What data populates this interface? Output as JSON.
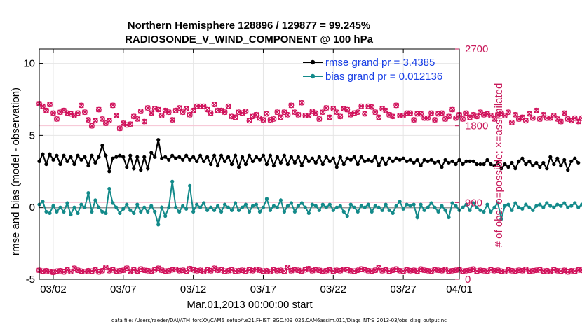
{
  "chart_data": {
    "type": "line",
    "title_line1": "Northern Hemisphere 128896 / 129877 = 99.245%",
    "title_line2": "RADIOSONDE_V_WIND_COMPONENT @ 100 hPa",
    "xlabel": "Mar.01,2013 00:00:00 start",
    "ylabel": "rmse and bias (model - observation)",
    "y2label": "# of obs: o=possible; ×=assimilated",
    "footnote": "data file: /Users/raeder/DAI/ATM_forcXX/CAM6_setup/f.e21.FHIST_BGC.f09_025.CAM6assim.011/Diags_NTrS_2013-03/obs_diag_output.nc",
    "xlim": [
      1,
      31
    ],
    "ylim": [
      -5,
      11
    ],
    "y2lim": [
      0,
      2700
    ],
    "x_ticks": [
      {
        "value": 2,
        "label": "03/02"
      },
      {
        "value": 7,
        "label": "03/07"
      },
      {
        "value": 12,
        "label": "03/12"
      },
      {
        "value": 17,
        "label": "03/17"
      },
      {
        "value": 22,
        "label": "03/22"
      },
      {
        "value": 27,
        "label": "03/27"
      },
      {
        "value": 31,
        "label": "04/01"
      }
    ],
    "y_ticks": [
      {
        "value": -5,
        "label": "-5"
      },
      {
        "value": 0,
        "label": "0"
      },
      {
        "value": 5,
        "label": "5"
      },
      {
        "value": 10,
        "label": "10"
      }
    ],
    "y2_ticks": [
      {
        "value": 0,
        "label": "0"
      },
      {
        "value": 900,
        "label": "900"
      },
      {
        "value": 1800,
        "label": "1800"
      },
      {
        "value": 2700,
        "label": "2700"
      }
    ],
    "legend": [
      {
        "label": "rmse grand pr = 3.4385",
        "color": "#000000"
      },
      {
        "label": "bias grand pr = 0.012136",
        "color": "#138a8a"
      }
    ],
    "series": [
      {
        "name": "rmse grand pr = 3.4385",
        "color": "#000000",
        "x_start": 1.0,
        "x_step": 0.25,
        "values": [
          3.2,
          3.7,
          3.0,
          3.7,
          3.3,
          3.6,
          3.0,
          3.6,
          3.2,
          3.5,
          3.0,
          3.6,
          3.3,
          3.5,
          2.9,
          3.6,
          3.1,
          3.5,
          4.3,
          3.6,
          2.5,
          3.4,
          3.5,
          3.6,
          3.5,
          2.8,
          3.6,
          2.7,
          3.5,
          2.6,
          3.5,
          2.7,
          3.8,
          3.5,
          4.7,
          3.4,
          3.5,
          3.3,
          3.6,
          3.4,
          3.5,
          3.3,
          3.6,
          3.3,
          3.5,
          3.2,
          3.6,
          3.2,
          3.5,
          3.0,
          3.6,
          2.9,
          3.6,
          3.2,
          3.5,
          3.0,
          3.6,
          2.8,
          3.5,
          3.0,
          3.6,
          3.2,
          3.5,
          3.3,
          3.6,
          3.0,
          3.6,
          2.9,
          3.5,
          3.1,
          3.6,
          3.0,
          3.5,
          3.1,
          3.5,
          2.9,
          3.5,
          3.2,
          3.4,
          3.1,
          3.5,
          3.0,
          3.5,
          3.2,
          3.4,
          2.8,
          3.5,
          3.0,
          3.4,
          3.3,
          3.5,
          3.0,
          3.5,
          3.2,
          3.3,
          3.2,
          3.5,
          2.9,
          3.4,
          3.0,
          3.4,
          3.2,
          3.4,
          3.3,
          3.4,
          3.2,
          3.3,
          3.1,
          3.3,
          2.9,
          3.3,
          3.2,
          3.3,
          3.1,
          3.2,
          2.8,
          3.3,
          3.1,
          3.2,
          3.0,
          3.3,
          3.0,
          3.2,
          3.2,
          3.2,
          3.0,
          3.0,
          3.0,
          3.3,
          3.0,
          2.9,
          3.1,
          2.7,
          3.0,
          2.8,
          3.1,
          2.7,
          3.2,
          3.4,
          3.0,
          3.2,
          2.9,
          3.1,
          2.8,
          3.1,
          2.7,
          3.5,
          3.0,
          3.4,
          2.9,
          3.3,
          2.6,
          3.2,
          3.4,
          3.1
        ]
      },
      {
        "name": "bias grand pr = 0.012136",
        "color": "#138a8a",
        "x_start": 1.0,
        "x_step": 0.25,
        "values": [
          0.2,
          0.4,
          -0.3,
          -0.4,
          0.1,
          -0.3,
          0.0,
          -0.3,
          0.3,
          -0.5,
          0.0,
          -0.4,
          0.2,
          0.0,
          1.0,
          -0.3,
          0.5,
          0.0,
          -0.3,
          -0.4,
          1.3,
          0.3,
          0.0,
          -0.4,
          -0.1,
          0.2,
          -0.2,
          -0.4,
          0.2,
          -0.3,
          0.0,
          -0.3,
          0.1,
          -0.3,
          -1.2,
          0.0,
          -0.6,
          0.0,
          1.8,
          0.0,
          -0.3,
          0.1,
          -0.1,
          1.5,
          -0.3,
          0.2,
          0.0,
          0.3,
          -0.2,
          0.0,
          -0.2,
          0.1,
          -0.3,
          0.2,
          0.0,
          -0.2,
          0.3,
          -0.2,
          0.0,
          0.2,
          -0.3,
          0.1,
          0.2,
          -0.3,
          0.0,
          0.6,
          -0.2,
          0.1,
          0.0,
          0.5,
          -0.3,
          0.1,
          0.3,
          -0.3,
          0.1,
          0.3,
          0.0,
          -0.4,
          0.2,
          0.1,
          -0.2,
          0.2,
          0.0,
          0.2,
          -0.2,
          0.0,
          0.1,
          -0.3,
          -0.6,
          0.2,
          0.0,
          -0.3,
          0.1,
          0.0,
          0.2,
          -0.3,
          0.1,
          0.0,
          -0.2,
          0.2,
          -0.2,
          -0.4,
          0.1,
          0.4,
          -0.1,
          0.2,
          0.1,
          0.2,
          -0.7,
          0.2,
          -0.2,
          0.0,
          0.3,
          0.0,
          -0.3,
          0.1,
          -0.2,
          -0.7,
          0.3,
          0.1,
          -0.2,
          0.0,
          0.2,
          -0.2,
          0.3,
          0.0,
          -0.2,
          -0.3,
          0.2,
          -0.3,
          0.0,
          0.3,
          -0.8,
          0.1,
          0.2,
          -0.2,
          0.3,
          0.0,
          -0.1,
          0.2,
          0.0,
          -0.2,
          0.1,
          0.2,
          0.0,
          0.3,
          0.1,
          0.0,
          0.2,
          0.1,
          0.3,
          0.0,
          0.1,
          0.3,
          0.0,
          0.2,
          0.6
        ]
      }
    ],
    "obs_counts": {
      "axis": "right",
      "color": "#d0105a",
      "x_start": 1.0,
      "x_step": 0.25,
      "possible_high": [
        2060,
        2030,
        1980,
        2050,
        1950,
        1880,
        1960,
        1980,
        1950,
        1940,
        1920,
        1950,
        2040,
        1960,
        1870,
        1800,
        1860,
        1990,
        1880,
        1830,
        1860,
        2040,
        1920,
        1770,
        1830,
        1810,
        1820,
        1910,
        1880,
        1970,
        1850,
        2010,
        1950,
        2000,
        1990,
        1920,
        1980,
        1960,
        1870,
        1980,
        2010,
        1960,
        2000,
        1930,
        1980,
        2030,
        2030,
        2030,
        1990,
        1950,
        2050,
        1980,
        1980,
        1960,
        2030,
        1910,
        1900,
        1960,
        1950,
        1970,
        1860,
        1910,
        1930,
        1890,
        1870,
        1940,
        1870,
        1880,
        1960,
        1900,
        1960,
        1930,
        2040,
        1960,
        1930,
        2070,
        1920,
        1920,
        1970,
        1950,
        1880,
        1960,
        2010,
        1900,
        2000,
        1960,
        1910,
        2000,
        1990,
        1930,
        1950,
        1960,
        2030,
        1940,
        2030,
        2020,
        1960,
        1900,
        2000,
        1980,
        1930,
        1910,
        2040,
        1920,
        1920,
        1950,
        1950,
        1870,
        1940,
        1940,
        1890,
        1890,
        1950,
        1870,
        1940,
        1950,
        1880,
        1910,
        1990,
        1890,
        1930,
        1880,
        1950,
        1900,
        1930,
        1910,
        1960,
        1930,
        1940,
        1920,
        1880,
        1930,
        1950,
        1920,
        1960,
        1840,
        1930,
        1880,
        1900,
        1860,
        1940,
        1890,
        1980,
        1880,
        1930,
        1890,
        1890,
        1920,
        1880,
        1850,
        1950,
        1880,
        1860,
        1890,
        1850,
        1890,
        1840,
        1860,
        1830,
        1820,
        1780
      ],
      "possible_low": [
        105,
        95,
        100,
        90,
        80,
        95,
        100,
        85,
        110,
        90,
        130,
        105,
        95,
        90,
        100,
        95,
        110,
        85,
        100,
        140,
        100,
        110,
        95,
        100,
        105,
        130,
        90,
        110,
        95,
        120,
        105,
        100,
        95,
        110,
        130,
        105,
        95,
        100,
        110,
        115,
        100,
        105,
        95,
        125,
        110,
        100,
        105,
        90,
        110,
        100,
        130,
        105,
        110,
        95,
        100,
        110,
        95,
        100,
        105,
        95,
        110,
        100,
        115,
        105,
        95,
        100,
        90,
        110,
        100,
        105,
        95,
        140,
        100,
        110,
        105,
        95,
        110,
        125,
        100,
        110,
        105,
        95,
        100,
        110,
        95,
        105,
        100,
        115,
        110,
        100,
        95,
        105,
        120,
        110,
        100,
        95,
        105,
        135,
        100,
        110,
        95,
        105,
        120,
        100,
        95,
        110,
        100,
        105,
        95,
        120,
        105,
        100,
        95,
        110,
        105,
        100,
        115,
        95,
        100,
        105,
        110,
        95,
        100,
        105,
        120,
        95,
        105,
        100,
        95,
        110,
        100,
        105,
        95,
        90,
        110,
        100,
        95,
        105,
        100,
        115,
        95,
        100,
        105,
        110,
        95,
        100,
        90,
        110,
        100,
        95,
        105,
        85,
        100,
        95,
        110,
        105,
        100,
        90,
        95,
        100,
        85
      ]
    }
  }
}
